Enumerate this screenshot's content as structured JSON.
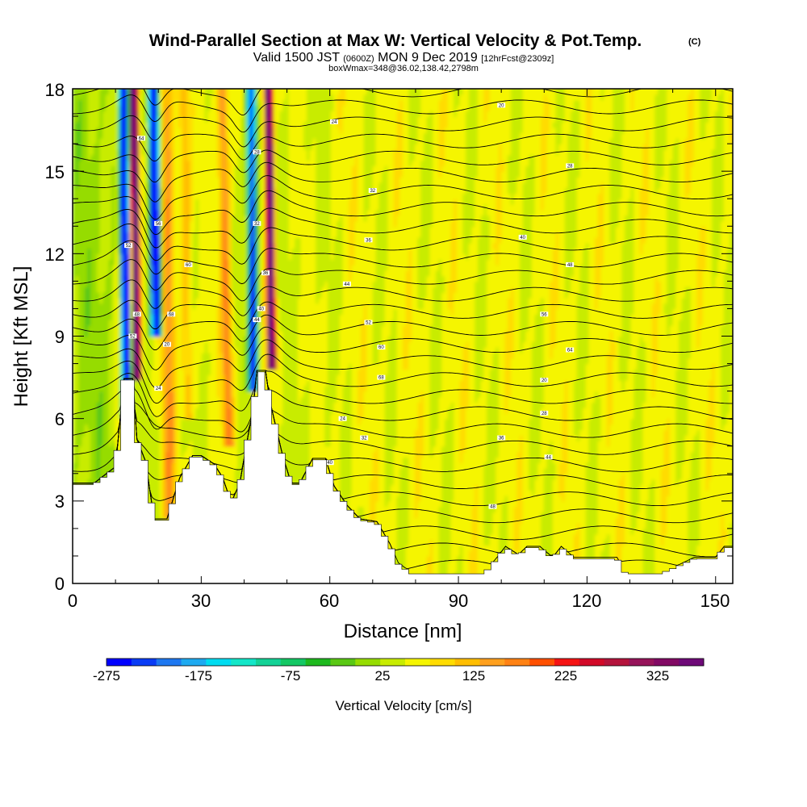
{
  "chart_data": {
    "type": "heatmap",
    "title": "Wind-Parallel Section at Max W: Vertical Velocity & Pot.Temp.",
    "title_mark": "(C)",
    "subtitle_parts": [
      "Valid 1500 JST",
      "(0600Z)",
      "MON 9 Dec 2019",
      "[12hrFcst@2309z]"
    ],
    "subtitle2": "boxWmax=348@36.02,138.42,2798m",
    "xlabel": "Distance [nm]",
    "ylabel": "Height [Kft MSL]",
    "xlim": [
      0,
      154
    ],
    "ylim": [
      0,
      18
    ],
    "x_ticks": [
      "0",
      "30",
      "60",
      "90",
      "120",
      "150"
    ],
    "y_ticks": [
      "0",
      "3",
      "6",
      "9",
      "12",
      "15",
      "18"
    ],
    "colorbar": {
      "title": "Vertical Velocity [cm/s]",
      "min": -300,
      "max": 375,
      "step": 25,
      "tick_labels": [
        "-275",
        "-175",
        "-75",
        "25",
        "125",
        "225",
        "325"
      ],
      "colors": [
        "#0000ff",
        "#0a3cf5",
        "#1e78f0",
        "#1eaaf0",
        "#00dcf0",
        "#14e6c8",
        "#14d296",
        "#14c864",
        "#1eb91e",
        "#5ac814",
        "#96dc00",
        "#c8ec00",
        "#f5f500",
        "#ffdc00",
        "#ffbe00",
        "#ffa01e",
        "#ff8214",
        "#ff5000",
        "#f51414",
        "#d20a28",
        "#b4143c",
        "#96145a",
        "#820a64",
        "#6e0a78"
      ]
    },
    "terrain_kft": [
      [
        0,
        3.6
      ],
      [
        5,
        3.6
      ],
      [
        10,
        4.2
      ],
      [
        12,
        7.4
      ],
      [
        14,
        7.4
      ],
      [
        15,
        5.2
      ],
      [
        17,
        4.4
      ],
      [
        19,
        2.3
      ],
      [
        22,
        2.3
      ],
      [
        25,
        3.8
      ],
      [
        28,
        4.6
      ],
      [
        30,
        4.6
      ],
      [
        33,
        4.3
      ],
      [
        35,
        3.8
      ],
      [
        37,
        2.9
      ],
      [
        39,
        3.6
      ],
      [
        41,
        5.4
      ],
      [
        42,
        6.2
      ],
      [
        43,
        7.7
      ],
      [
        45,
        7.7
      ],
      [
        46,
        6.6
      ],
      [
        49,
        4.6
      ],
      [
        51,
        3.6
      ],
      [
        53,
        3.6
      ],
      [
        56,
        4.5
      ],
      [
        59,
        4.5
      ],
      [
        61,
        3.5
      ],
      [
        64,
        2.8
      ],
      [
        67,
        2.3
      ],
      [
        71,
        2.2
      ],
      [
        74,
        1.4
      ],
      [
        76,
        0.7
      ],
      [
        79,
        0.35
      ],
      [
        88,
        0.35
      ],
      [
        96,
        0.35
      ],
      [
        99,
        0.9
      ],
      [
        101,
        1.3
      ],
      [
        104,
        1.0
      ],
      [
        106,
        1.3
      ],
      [
        109,
        1.3
      ],
      [
        112,
        0.9
      ],
      [
        114,
        1.3
      ],
      [
        117,
        0.9
      ],
      [
        124,
        0.9
      ],
      [
        127,
        0.9
      ],
      [
        129,
        0.35
      ],
      [
        133,
        0.35
      ],
      [
        137,
        0.35
      ],
      [
        141,
        0.6
      ],
      [
        145,
        0.9
      ],
      [
        150,
        0.9
      ],
      [
        152,
        1.3
      ],
      [
        154,
        1.3
      ]
    ],
    "theta_contour_labels": [
      "20",
      "24",
      "28",
      "32",
      "36",
      "40",
      "44",
      "48",
      "52",
      "56",
      "60",
      "64",
      "68"
    ]
  }
}
